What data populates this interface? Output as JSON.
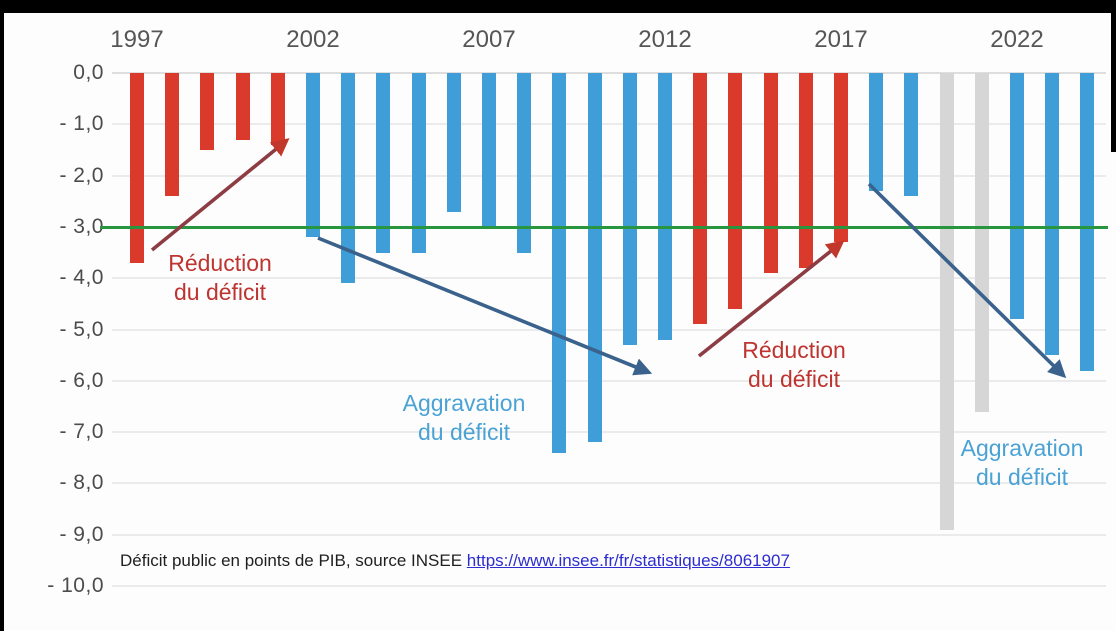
{
  "chart_data": {
    "type": "bar",
    "categories": [
      1997,
      1998,
      1999,
      2000,
      2001,
      2002,
      2003,
      2004,
      2005,
      2006,
      2007,
      2008,
      2009,
      2010,
      2011,
      2012,
      2013,
      2014,
      2015,
      2016,
      2017,
      2018,
      2019,
      2020,
      2021,
      2022,
      2023,
      2024
    ],
    "values": [
      -3.7,
      -2.4,
      -1.5,
      -1.3,
      -1.4,
      -3.2,
      -4.1,
      -3.5,
      -3.5,
      -2.7,
      -3.0,
      -3.5,
      -7.4,
      -7.2,
      -5.3,
      -5.2,
      -4.9,
      -4.6,
      -3.9,
      -3.8,
      -3.3,
      -2.3,
      -2.4,
      -8.9,
      -6.6,
      -4.8,
      -5.5,
      -5.8
    ],
    "bar_colors": [
      "red",
      "red",
      "red",
      "red",
      "red",
      "blue",
      "blue",
      "blue",
      "blue",
      "blue",
      "blue",
      "blue",
      "blue",
      "blue",
      "blue",
      "blue",
      "red",
      "red",
      "red",
      "red",
      "red",
      "blue",
      "blue",
      "gray",
      "gray",
      "blue",
      "blue",
      "blue"
    ],
    "palette": {
      "red": "#d93a2b",
      "blue": "#3f9ed8",
      "gray": "#d6d6d6"
    },
    "y_tick_labels": [
      "0,0",
      "- 1,0",
      "- 2,0",
      "- 3,0",
      "- 4,0",
      "- 5,0",
      "- 6,0",
      "- 7,0",
      "- 8,0",
      "- 9,0",
      "- 10,0"
    ],
    "x_ticks": [
      {
        "label": "1997",
        "index": 0
      },
      {
        "label": "2002",
        "index": 5
      },
      {
        "label": "2007",
        "index": 10
      },
      {
        "label": "2012",
        "index": 15
      },
      {
        "label": "2017",
        "index": 20
      },
      {
        "label": "2022",
        "index": 25
      }
    ],
    "ylim": [
      -10,
      0
    ],
    "grid": true,
    "reference_line": {
      "value": -3.0,
      "color": "#27963f"
    },
    "annotations": [
      {
        "id": "reduction-1",
        "line1": "Réduction",
        "line2": "du déficit",
        "color": "red"
      },
      {
        "id": "aggravation-1",
        "line1": "Aggravation",
        "line2": "du déficit",
        "color": "blue"
      },
      {
        "id": "reduction-2",
        "line1": "Réduction",
        "line2": "du déficit",
        "color": "red"
      },
      {
        "id": "aggravation-2",
        "line1": "Aggravation",
        "line2": "du déficit",
        "color": "blue"
      }
    ]
  },
  "caption": {
    "text": "Déficit public en points de PIB, source INSEE",
    "link": "https://www.insee.fr/fr/statistiques/8061907"
  }
}
